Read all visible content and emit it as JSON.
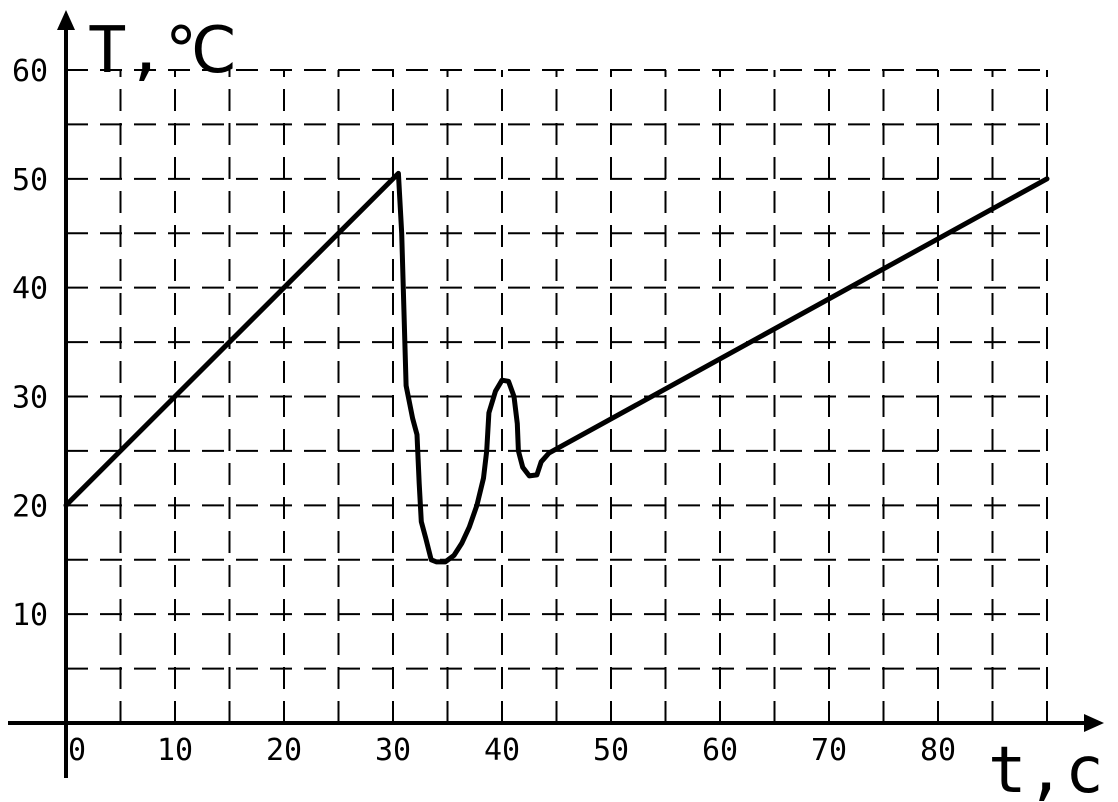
{
  "chart_data": {
    "type": "line",
    "xlabel": "t,c",
    "ylabel": "T,℃",
    "xlim": [
      0,
      90
    ],
    "ylim": [
      0,
      60
    ],
    "grid": true,
    "grid_style": "dashed",
    "x_ticks": [
      {
        "value": 0,
        "label": "0"
      },
      {
        "value": 10,
        "label": "10"
      },
      {
        "value": 20,
        "label": "20"
      },
      {
        "value": 30,
        "label": "30"
      },
      {
        "value": 40,
        "label": "40"
      },
      {
        "value": 50,
        "label": "50"
      },
      {
        "value": 60,
        "label": "60"
      },
      {
        "value": 70,
        "label": "70"
      },
      {
        "value": 80,
        "label": "80"
      }
    ],
    "y_ticks": [
      {
        "value": 10,
        "label": "10"
      },
      {
        "value": 20,
        "label": "20"
      },
      {
        "value": 30,
        "label": "30"
      },
      {
        "value": 40,
        "label": "40"
      },
      {
        "value": 50,
        "label": "50"
      },
      {
        "value": 60,
        "label": "60"
      }
    ],
    "series": [
      {
        "color": "#000000",
        "points": [
          [
            0,
            20
          ],
          [
            30.5,
            50.5
          ],
          [
            30.8,
            45
          ],
          [
            31,
            38
          ],
          [
            31.2,
            31
          ],
          [
            31.8,
            28
          ],
          [
            32.2,
            26.5
          ],
          [
            32.4,
            22
          ],
          [
            32.6,
            18.5
          ],
          [
            33,
            17
          ],
          [
            33.5,
            15
          ],
          [
            34,
            14.8
          ],
          [
            34.8,
            14.8
          ],
          [
            35.6,
            15.4
          ],
          [
            36.3,
            16.5
          ],
          [
            37,
            18
          ],
          [
            37.7,
            20
          ],
          [
            38.3,
            22.5
          ],
          [
            38.6,
            25
          ],
          [
            38.8,
            28.5
          ],
          [
            39.4,
            30.5
          ],
          [
            40,
            31.5
          ],
          [
            40.6,
            31.4
          ],
          [
            41.1,
            30
          ],
          [
            41.4,
            27.5
          ],
          [
            41.5,
            25
          ],
          [
            41.9,
            23.5
          ],
          [
            42.5,
            22.7
          ],
          [
            43.2,
            22.8
          ],
          [
            43.6,
            24
          ],
          [
            44.3,
            24.8
          ],
          [
            90,
            50
          ]
        ]
      }
    ]
  }
}
